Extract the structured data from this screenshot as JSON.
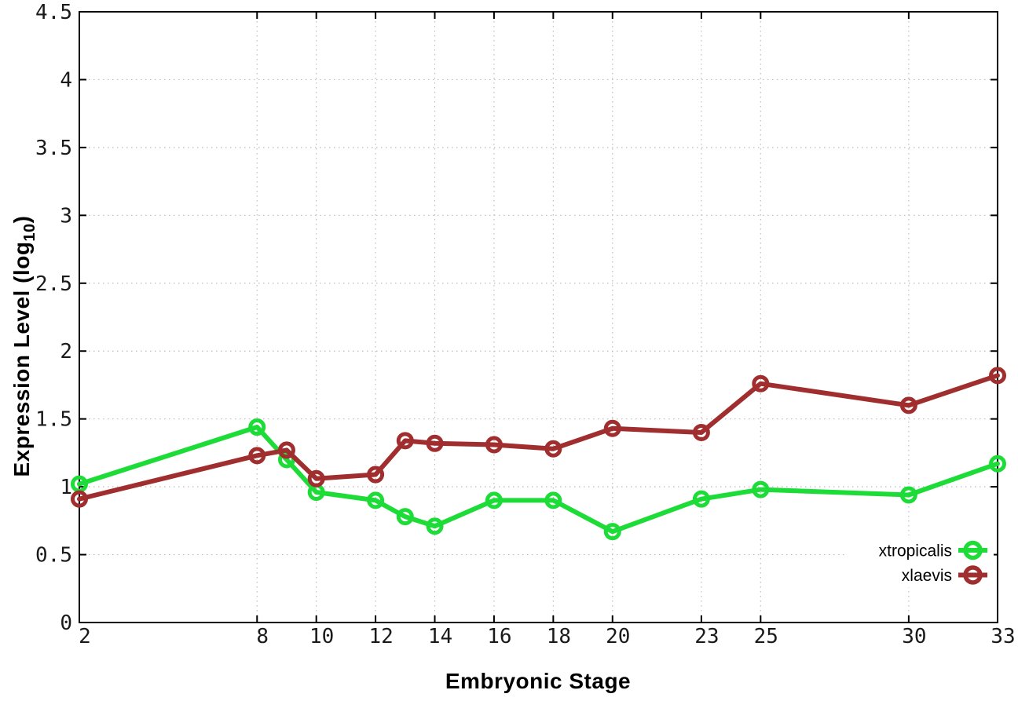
{
  "chart_data": {
    "type": "line",
    "title": "",
    "xlabel": "Embryonic Stage",
    "ylabel": {
      "pre": "Expression Level (log",
      "sub": "10",
      "post": ")"
    },
    "xlim": [
      2,
      33
    ],
    "ylim": [
      0,
      4.5
    ],
    "x_ticks": [
      2,
      8,
      10,
      12,
      14,
      16,
      18,
      20,
      23,
      25,
      30,
      33
    ],
    "y_ticks": [
      0,
      0.5,
      1,
      1.5,
      2,
      2.5,
      3,
      3.5,
      4,
      4.5
    ],
    "grid": true,
    "legend_position": "bottom-right",
    "x": [
      2,
      8,
      9,
      10,
      12,
      13,
      14,
      16,
      18,
      20,
      23,
      25,
      30,
      33
    ],
    "series": [
      {
        "name": "xtropicalis",
        "color": "#1edc38",
        "marker": "open-circle",
        "values": [
          1.02,
          1.44,
          1.2,
          0.96,
          0.9,
          0.78,
          0.71,
          0.9,
          0.9,
          0.67,
          0.91,
          0.98,
          0.94,
          1.17
        ]
      },
      {
        "name": "xlaevis",
        "color": "#a02e2e",
        "marker": "open-circle",
        "values": [
          0.91,
          1.23,
          1.27,
          1.06,
          1.09,
          1.34,
          1.32,
          1.31,
          1.28,
          1.43,
          1.4,
          1.76,
          1.6,
          1.82
        ]
      }
    ],
    "axis_color": "#000000",
    "grid_color": "#bcbcbc",
    "tick_label_color": "#1a1a1a"
  }
}
